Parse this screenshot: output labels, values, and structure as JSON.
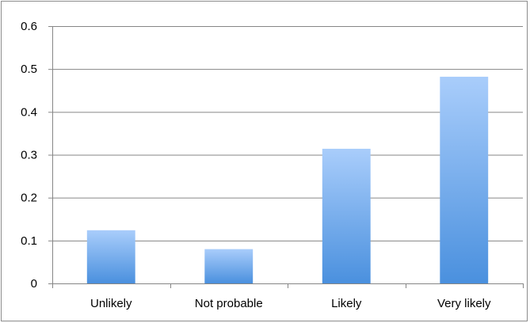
{
  "chart_data": {
    "type": "bar",
    "title": "",
    "xlabel": "",
    "ylabel": "",
    "categories": [
      "Unlikely",
      "Not probable",
      "Likely",
      "Very likely"
    ],
    "values": [
      0.124,
      0.08,
      0.314,
      0.482
    ],
    "ylim": [
      0,
      0.6
    ],
    "yticks": [
      "0",
      "0.1",
      "0.2",
      "0.3",
      "0.4",
      "0.5",
      "0.6"
    ],
    "grid": true,
    "legend": "none",
    "colors": {
      "bar_top": "#a9cdfb",
      "bar_bottom": "#4a90de",
      "grid": "#868686",
      "axis": "#868686"
    }
  }
}
